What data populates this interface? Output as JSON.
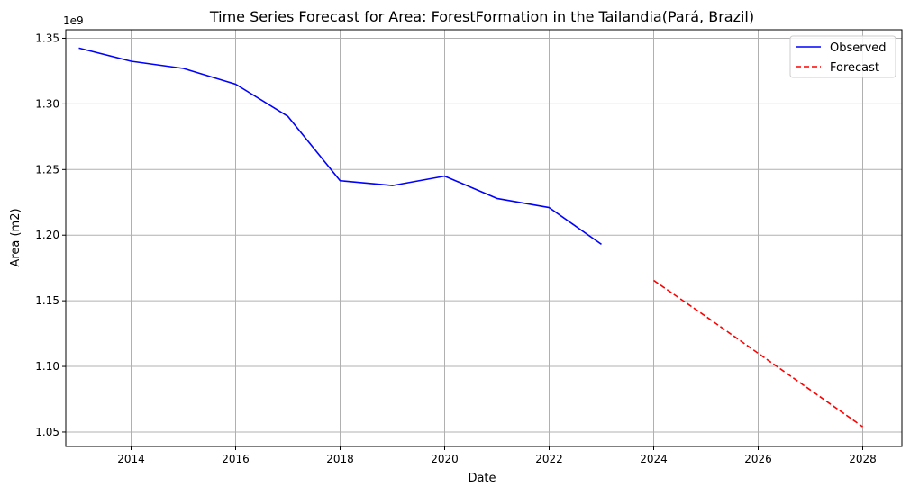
{
  "chart_data": {
    "type": "line",
    "title": "Time Series Forecast for Area: ForestFormation in the Tailandia(Pará, Brazil)",
    "xlabel": "Date",
    "ylabel": "Area (m2)",
    "y_offset_label": "1e9",
    "xlim": [
      2012.75,
      2028.75
    ],
    "ylim": [
      1.039,
      1.3565
    ],
    "x_ticks": [
      2014,
      2016,
      2018,
      2020,
      2022,
      2024,
      2026,
      2028
    ],
    "y_ticks": [
      1.05,
      1.1,
      1.15,
      1.2,
      1.25,
      1.3,
      1.35
    ],
    "y_tick_labels": [
      "1.05",
      "1.10",
      "1.15",
      "1.20",
      "1.25",
      "1.30",
      "1.35"
    ],
    "grid": true,
    "legend_position": "top-right",
    "series": [
      {
        "name": "Observed",
        "color": "#0000ff",
        "style": "solid",
        "x": [
          2013,
          2014,
          2015,
          2016,
          2017,
          2018,
          2019,
          2020,
          2021,
          2022,
          2023
        ],
        "y": [
          1.3425,
          1.3325,
          1.327,
          1.315,
          1.2905,
          1.2415,
          1.2378,
          1.245,
          1.228,
          1.221,
          1.193
        ]
      },
      {
        "name": "Forecast",
        "color": "#ff0000",
        "style": "dashed",
        "x": [
          2024,
          2025,
          2026,
          2027,
          2028
        ],
        "y": [
          1.1655,
          1.138,
          1.11,
          1.082,
          1.054
        ]
      }
    ]
  }
}
